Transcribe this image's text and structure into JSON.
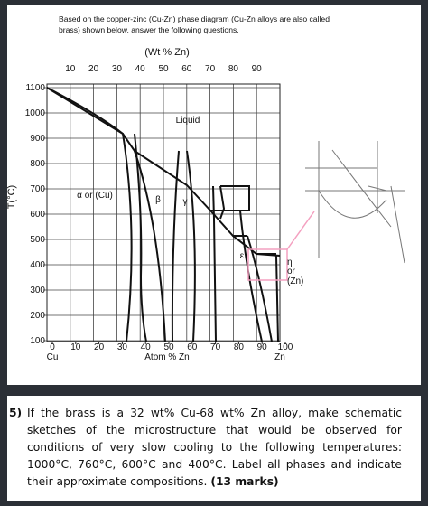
{
  "intro": "Based on the copper-zinc (Cu-Zn) phase diagram (Cu-Zn alloys are also called brass) shown below, answer the following questions.",
  "diagram": {
    "top_axis_label": "(Wt % Zn)",
    "top_ticks": [
      "10",
      "20",
      "30",
      "40",
      "50",
      "60",
      "70",
      "80",
      "90"
    ],
    "y_label": "T(°C)",
    "y_ticks": [
      "1100",
      "1000",
      "900",
      "800",
      "700",
      "600",
      "500",
      "400",
      "300",
      "200",
      "100"
    ],
    "bottom_ticks": [
      "0",
      "10",
      "20",
      "30",
      "40",
      "50",
      "60",
      "70",
      "80",
      "90",
      "100"
    ],
    "bottom_left": "Cu",
    "bottom_axis_label": "Atom % Zn",
    "bottom_right": "Zn",
    "phases": [
      "Liquid",
      "α or (Cu)",
      "β",
      "γ",
      "ε",
      "η",
      "or",
      "(Zn)"
    ]
  },
  "question": {
    "number": "5)",
    "text": "If the brass is a 32 wt% Cu-68 wt% Zn alloy, make schematic sketches of the microstructure that would be observed for conditions of very slow cooling to the following temperatures: 1000°C, 760°C, 600°C and 400°C. Label all phases and indicate their approximate compositions.",
    "marks": "(13 marks)"
  }
}
